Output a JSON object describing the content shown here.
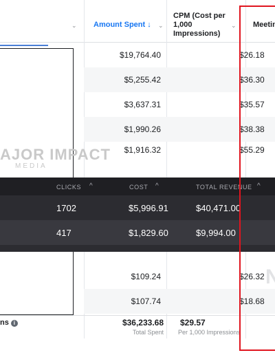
{
  "table": {
    "columns": {
      "amount_spent": "Amount Spent",
      "amount_sort_arrow": "↓",
      "cpm": "CPM (Cost per 1,000 Impressions)",
      "cpm_line1": "CPM (Cost per",
      "cpm_line2": "1,000",
      "cpm_line3": "Impressions)",
      "meetings": "Meetin"
    },
    "rows": [
      {
        "amount": "$19,764.40",
        "cpm": "$26.18"
      },
      {
        "amount": "$5,255.42",
        "cpm": "$36.30"
      },
      {
        "amount": "$3,637.31",
        "cpm": "$35.57"
      },
      {
        "amount": "$1,990.26",
        "cpm": "$38.38"
      },
      {
        "amount": "$1,916.32",
        "cpm": "$55.29"
      },
      {
        "amount": "$109.24",
        "cpm": "$26.32"
      },
      {
        "amount": "$107.74",
        "cpm": "$18.68"
      }
    ],
    "footer": {
      "label": "ns",
      "amount": "$36,233.68",
      "amount_sub": "Total Spent",
      "cpm": "$29.57",
      "cpm_sub": "Per 1,000 Impressions"
    }
  },
  "watermark": {
    "main": "AJOR IMPACT",
    "sub": "MEDIA"
  },
  "overlay": {
    "headers": {
      "clicks": "CLICKS",
      "cost": "COST",
      "total_revenue": "TOTAL REVENUE"
    },
    "sort_glyph": "^",
    "rows": [
      {
        "clicks": "1702",
        "cost": "$5,996.91",
        "revenue": "$40,471.00"
      },
      {
        "clicks": "417",
        "cost": "$1,829.60",
        "revenue": "$9,994.00"
      }
    ]
  },
  "colors": {
    "highlight": "#e0141e",
    "sorted_header": "#1877f2",
    "overlay_bg": "#2c2c31"
  }
}
